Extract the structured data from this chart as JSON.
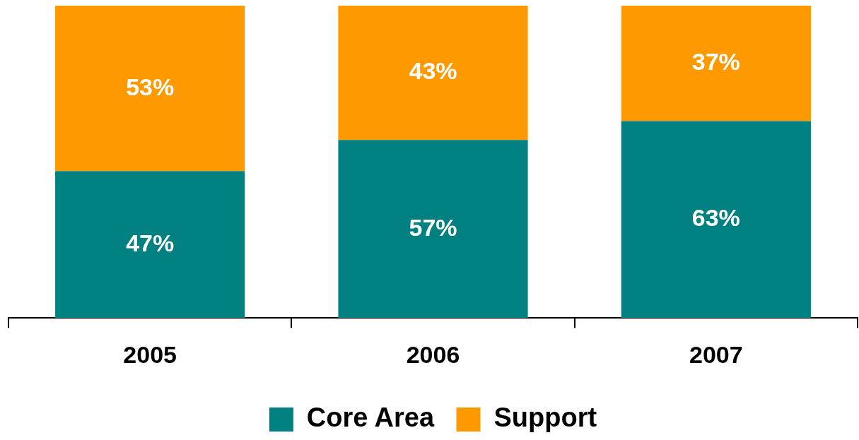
{
  "chart_data": {
    "type": "bar",
    "stacked": true,
    "categories": [
      "2005",
      "2006",
      "2007"
    ],
    "legend": "bottom",
    "tick_labels": "x",
    "series": [
      {
        "name": "Core Area",
        "color": "#008080",
        "values": [
          47,
          57,
          63
        ],
        "value_labels": [
          "47%",
          "57%",
          "63%"
        ]
      },
      {
        "name": "Support",
        "color": "#ff9900",
        "values": [
          53,
          43,
          37
        ],
        "value_labels": [
          "53%",
          "43%",
          "37%"
        ]
      }
    ]
  }
}
